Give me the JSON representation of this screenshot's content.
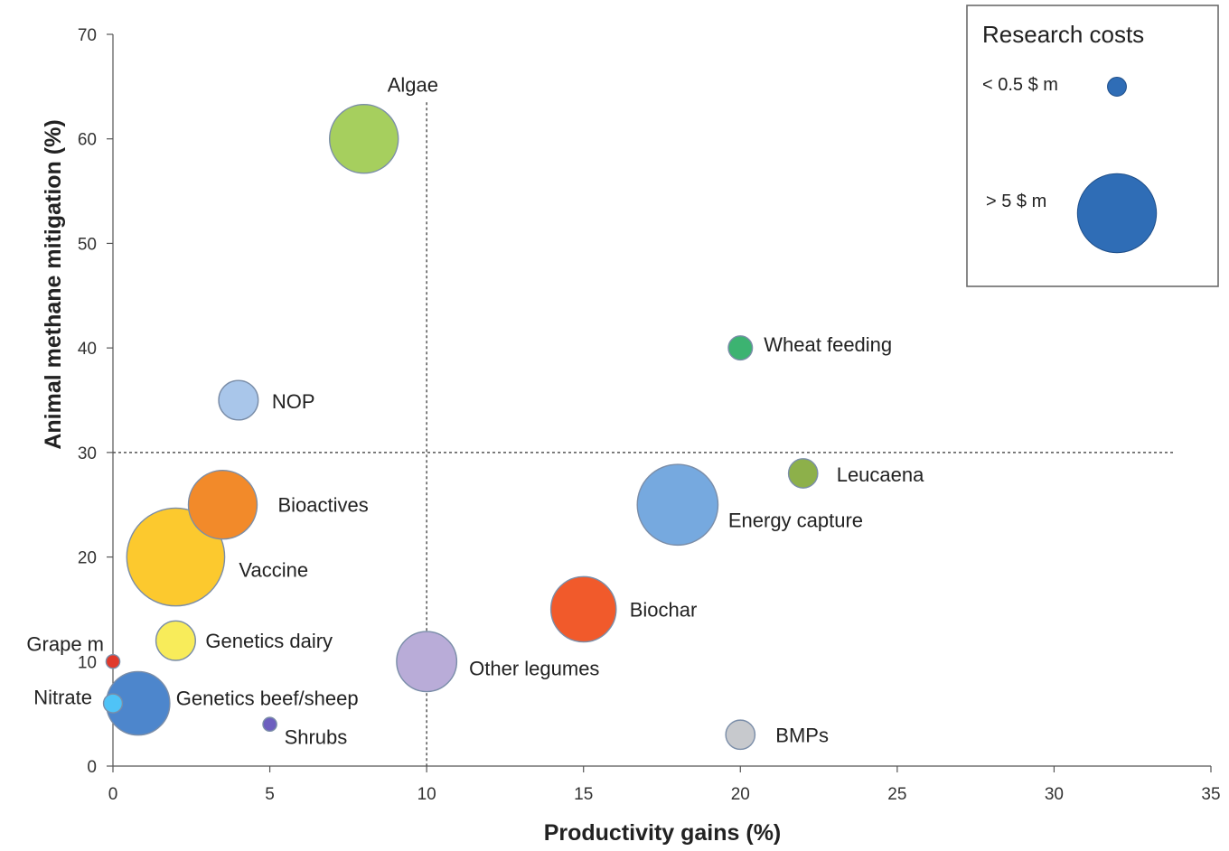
{
  "chart_data": {
    "type": "scatter",
    "variant": "bubble",
    "xlabel": "Productivity gains (%)",
    "ylabel": "Animal methane mitigation (%)",
    "xlim": [
      0,
      35
    ],
    "ylim": [
      0,
      70
    ],
    "xticks": [
      "0",
      "5",
      "10",
      "15",
      "20",
      "25",
      "30",
      "35"
    ],
    "yticks": [
      "0",
      "10",
      "20",
      "30",
      "40",
      "50",
      "60",
      "70"
    ],
    "grid": false,
    "reference_lines": [
      {
        "orientation": "vertical",
        "x": 10,
        "style": "dotted"
      },
      {
        "orientation": "horizontal",
        "y": 30,
        "style": "dotted"
      }
    ],
    "points": [
      {
        "label": "Algae",
        "x": 8,
        "y": 60,
        "color": "#a6cf5e",
        "size": 40
      },
      {
        "label": "Wheat feeding",
        "x": 20,
        "y": 40,
        "color": "#3cb371",
        "size": 14
      },
      {
        "label": "NOP",
        "x": 4,
        "y": 35,
        "color": "#a9c6ea",
        "size": 23
      },
      {
        "label": "Leucaena",
        "x": 22,
        "y": 28,
        "color": "#8db04a",
        "size": 17
      },
      {
        "label": "Bioactives",
        "x": 3.5,
        "y": 25,
        "color": "#f28a2a",
        "size": 40
      },
      {
        "label": "Energy capture",
        "x": 18,
        "y": 25,
        "color": "#76a9df",
        "size": 47
      },
      {
        "label": "Vaccine",
        "x": 2,
        "y": 20,
        "color": "#fcc92e",
        "size": 57
      },
      {
        "label": "Biochar",
        "x": 15,
        "y": 15,
        "color": "#f15a2b",
        "size": 38
      },
      {
        "label": "Genetics dairy",
        "x": 2,
        "y": 12,
        "color": "#f8ec5a",
        "size": 23
      },
      {
        "label": "Grape m",
        "x": 0,
        "y": 10,
        "color": "#e0392b",
        "size": 8
      },
      {
        "label": "Other legumes",
        "x": 10,
        "y": 10,
        "color": "#b9acd8",
        "size": 35
      },
      {
        "label": "Genetics beef/sheep",
        "x": 0.8,
        "y": 6,
        "color": "#4d86cc",
        "size": 37
      },
      {
        "label": "Nitrate",
        "x": 0,
        "y": 6,
        "color": "#4fc3f7",
        "size": 11
      },
      {
        "label": "Shrubs",
        "x": 5,
        "y": 4,
        "color": "#6d5fbf",
        "size": 8
      },
      {
        "label": "BMPs",
        "x": 20,
        "y": 3,
        "color": "#c7c9cd",
        "size": 17
      }
    ],
    "legend": {
      "title": "Research costs",
      "position": "top-right",
      "entries": [
        {
          "label": "< 0.5 $ m",
          "color": "#2f6db6",
          "size": 11
        },
        {
          "label": "> 5 $ m",
          "color": "#2f6db6",
          "size": 46
        }
      ]
    }
  }
}
